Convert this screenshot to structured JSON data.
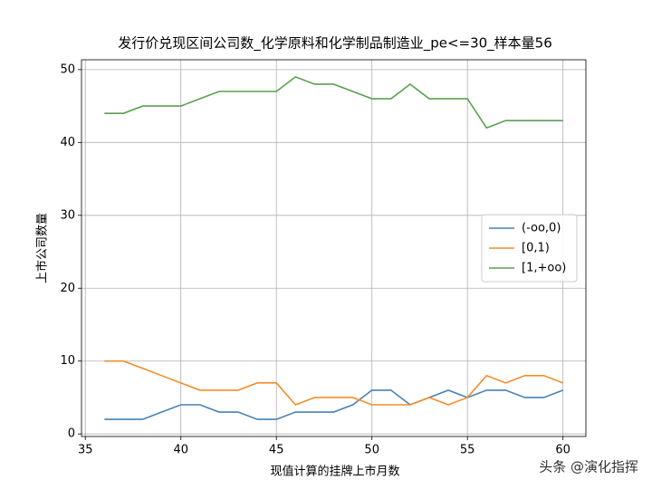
{
  "chart_data": {
    "type": "line",
    "title": "发行价兑现区间公司数_化学原料和化学制品制造业_pe<=30_样本量56",
    "x_label": "现值计算的挂牌上市月数",
    "y_label": "上市公司数量",
    "x": [
      36,
      37,
      38,
      39,
      40,
      41,
      42,
      43,
      44,
      45,
      46,
      47,
      48,
      49,
      50,
      51,
      52,
      53,
      54,
      55,
      56,
      57,
      58,
      59,
      60
    ],
    "series": [
      {
        "name": "(-oo,0)",
        "color": "#4682b4",
        "values": [
          2,
          2,
          2,
          3,
          4,
          4,
          3,
          3,
          2,
          2,
          3,
          3,
          3,
          4,
          6,
          6,
          4,
          5,
          6,
          5,
          6,
          6,
          5,
          5,
          6
        ]
      },
      {
        "name": "[0,1)",
        "color": "#f28e2b",
        "values": [
          10,
          10,
          9,
          8,
          7,
          6,
          6,
          6,
          7,
          7,
          4,
          5,
          5,
          5,
          4,
          4,
          4,
          5,
          4,
          5,
          8,
          7,
          8,
          8,
          7
        ]
      },
      {
        "name": "[1,+oo)",
        "color": "#59a14f",
        "values": [
          44,
          44,
          45,
          45,
          45,
          46,
          47,
          47,
          47,
          47,
          49,
          48,
          48,
          47,
          46,
          46,
          48,
          46,
          46,
          46,
          42,
          43,
          43,
          43,
          43
        ]
      }
    ],
    "xlim": [
      34.8,
      61.2
    ],
    "xticks": [
      35,
      40,
      45,
      50,
      55,
      60
    ],
    "ylim": [
      -0.35,
      51.35
    ],
    "yticks": [
      0,
      10,
      20,
      30,
      40,
      50
    ],
    "grid": true,
    "legend": "center right",
    "watermark": "头条 @演化指挥"
  }
}
